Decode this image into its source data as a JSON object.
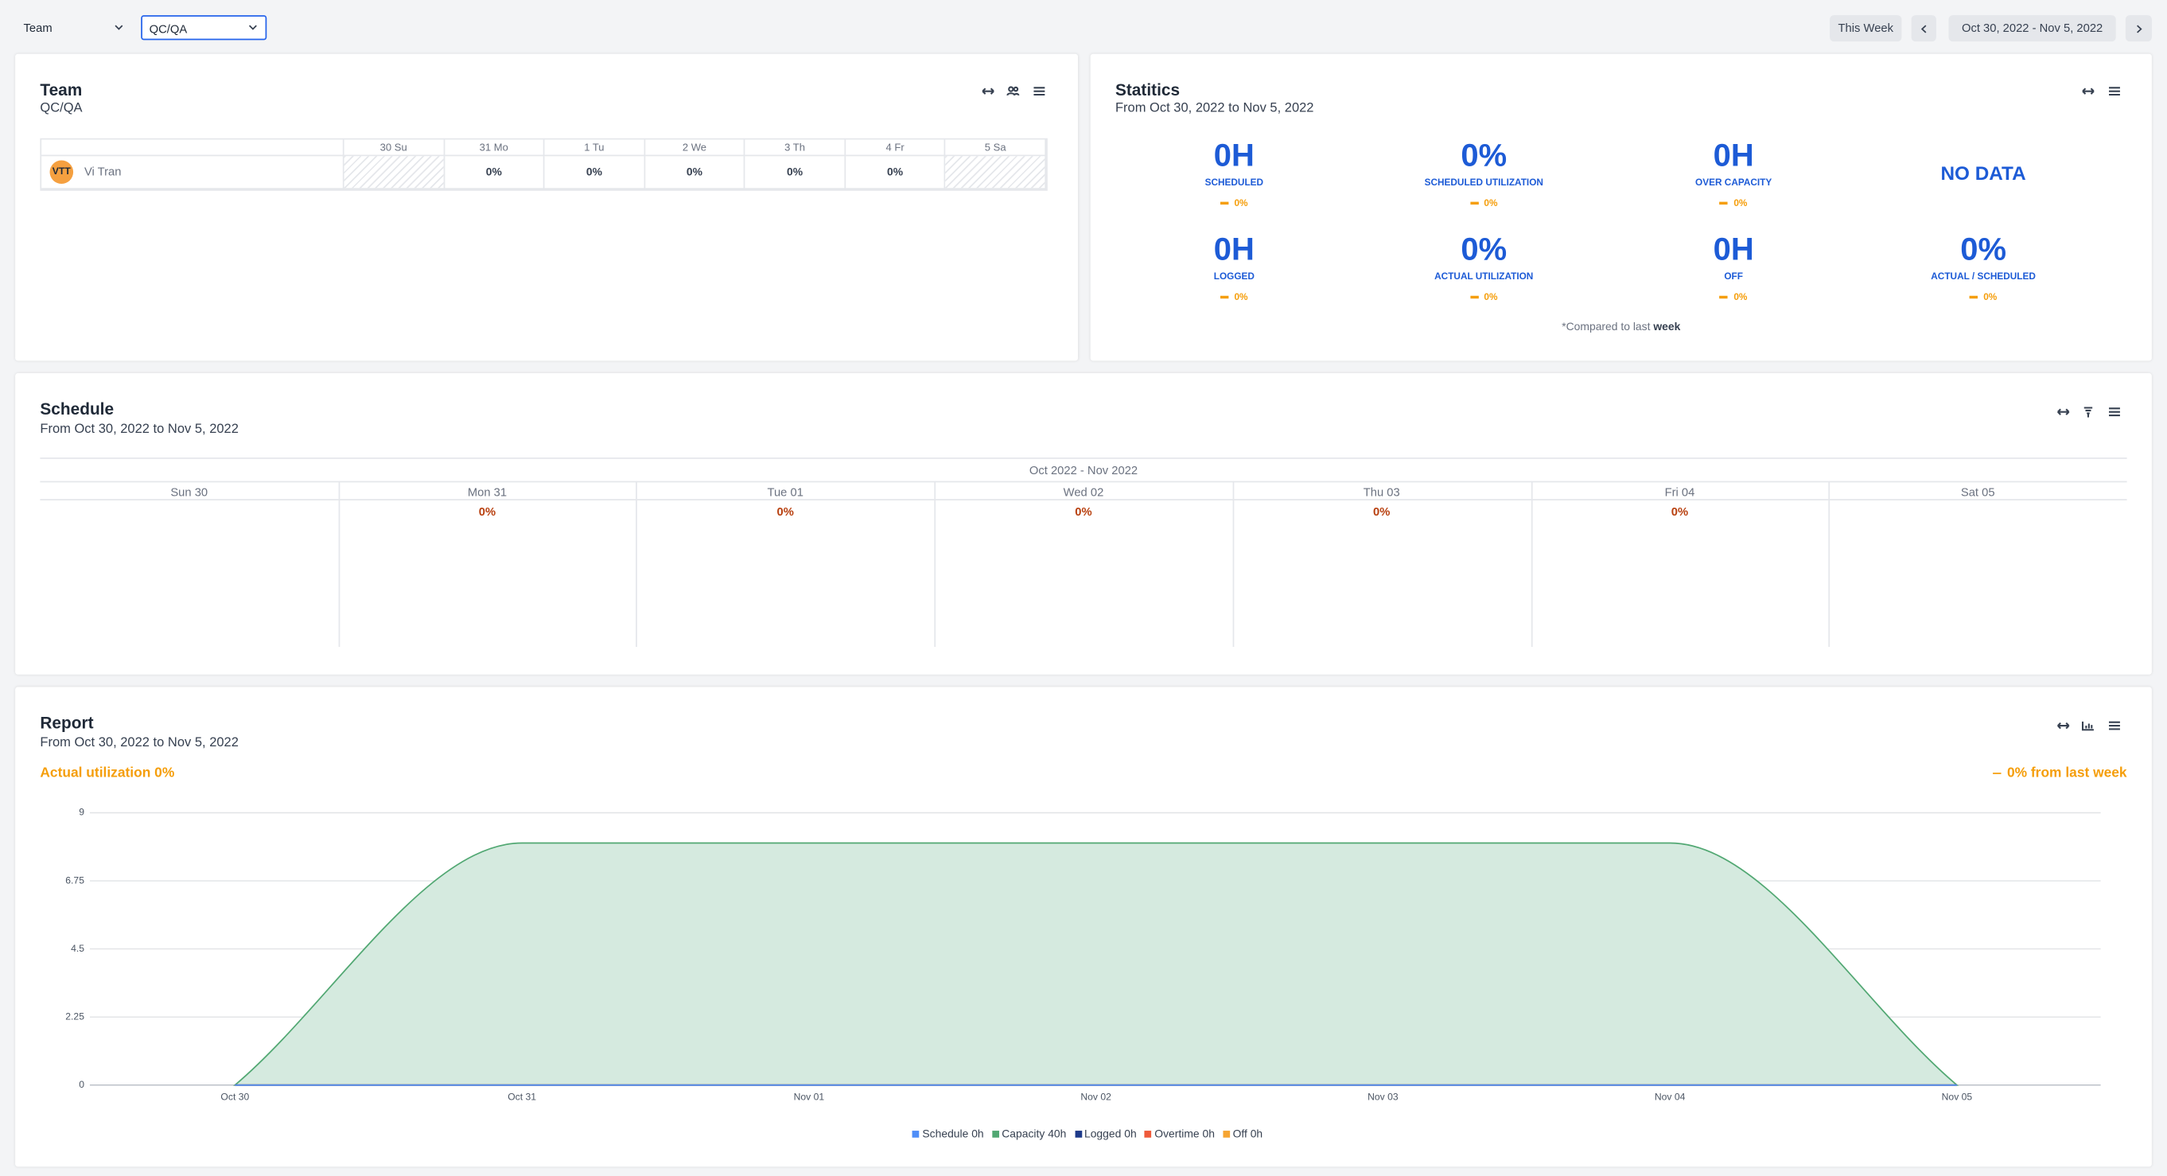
{
  "toolbar": {
    "group": "Team",
    "team": "QC/QA",
    "this_week": "This Week",
    "date_range": "Oct 30, 2022 - Nov 5, 2022"
  },
  "team": {
    "title": "Team",
    "subtitle": "QC/QA",
    "days": [
      "30 Su",
      "31 Mo",
      "1 Tu",
      "2 We",
      "3 Th",
      "4 Fr",
      "5 Sa"
    ],
    "members": [
      {
        "initials": "VTT",
        "name": "Vi Tran",
        "cells": [
          null,
          "0%",
          "0%",
          "0%",
          "0%",
          "0%",
          null
        ]
      }
    ]
  },
  "statistics": {
    "title": "Statitics",
    "subtitle": "From Oct 30, 2022 to Nov 5, 2022",
    "items": [
      {
        "value": "0H",
        "label": "SCHEDULED",
        "change": "0%"
      },
      {
        "value": "0%",
        "label": "SCHEDULED UTILIZATION",
        "change": "0%"
      },
      {
        "value": "0H",
        "label": "OVER CAPACITY",
        "change": "0%"
      },
      {
        "value": "NO DATA"
      },
      {
        "value": "0H",
        "label": "LOGGED",
        "change": "0%"
      },
      {
        "value": "0%",
        "label": "ACTUAL UTILIZATION",
        "change": "0%"
      },
      {
        "value": "0H",
        "label": "OFF",
        "change": "0%"
      },
      {
        "value": "0%",
        "label": "ACTUAL / SCHEDULED",
        "change": "0%"
      }
    ],
    "note": "*Compared to last",
    "note_emphasis": "week"
  },
  "schedule": {
    "title": "Schedule",
    "subtitle": "From Oct 30, 2022 to Nov 5, 2022",
    "period": "Oct 2022 - Nov 2022",
    "days": [
      {
        "label": "Sun 30",
        "value": null
      },
      {
        "label": "Mon 31",
        "value": "0%"
      },
      {
        "label": "Tue 01",
        "value": "0%"
      },
      {
        "label": "Wed 02",
        "value": "0%"
      },
      {
        "label": "Thu 03",
        "value": "0%"
      },
      {
        "label": "Fri 04",
        "value": "0%"
      },
      {
        "label": "Sat 05",
        "value": null
      }
    ]
  },
  "report": {
    "title": "Report",
    "subtitle": "From Oct 30, 2022 to Nov 5, 2022",
    "actual": "Actual utilization 0%",
    "change": "0% from last week"
  },
  "chart_data": {
    "type": "area",
    "categories": [
      "Oct 30",
      "Oct 31",
      "Nov 01",
      "Nov 02",
      "Nov 03",
      "Nov 04",
      "Nov 05"
    ],
    "ylim": [
      0,
      9
    ],
    "yticks": [
      0,
      2.25,
      4.5,
      6.75,
      9
    ],
    "grid": true,
    "smooth": true,
    "series": [
      {
        "name": "Schedule 0h",
        "color": "#4f8ef7",
        "values": [
          0,
          0,
          0,
          0,
          0,
          0,
          0
        ]
      },
      {
        "name": "Capacity 40h",
        "color": "#52a873",
        "fill": "#d5eadf",
        "values": [
          0,
          8,
          8,
          8,
          8,
          8,
          0
        ]
      },
      {
        "name": "Logged 0h",
        "color": "#1e3a8a",
        "values": [
          0,
          0,
          0,
          0,
          0,
          0,
          0
        ]
      },
      {
        "name": "Overtime 0h",
        "color": "#ef5b3b",
        "values": [
          0,
          0,
          0,
          0,
          0,
          0,
          0
        ]
      },
      {
        "name": "Off 0h",
        "color": "#f6a532",
        "values": [
          0,
          0,
          0,
          0,
          0,
          0,
          0
        ]
      }
    ]
  }
}
